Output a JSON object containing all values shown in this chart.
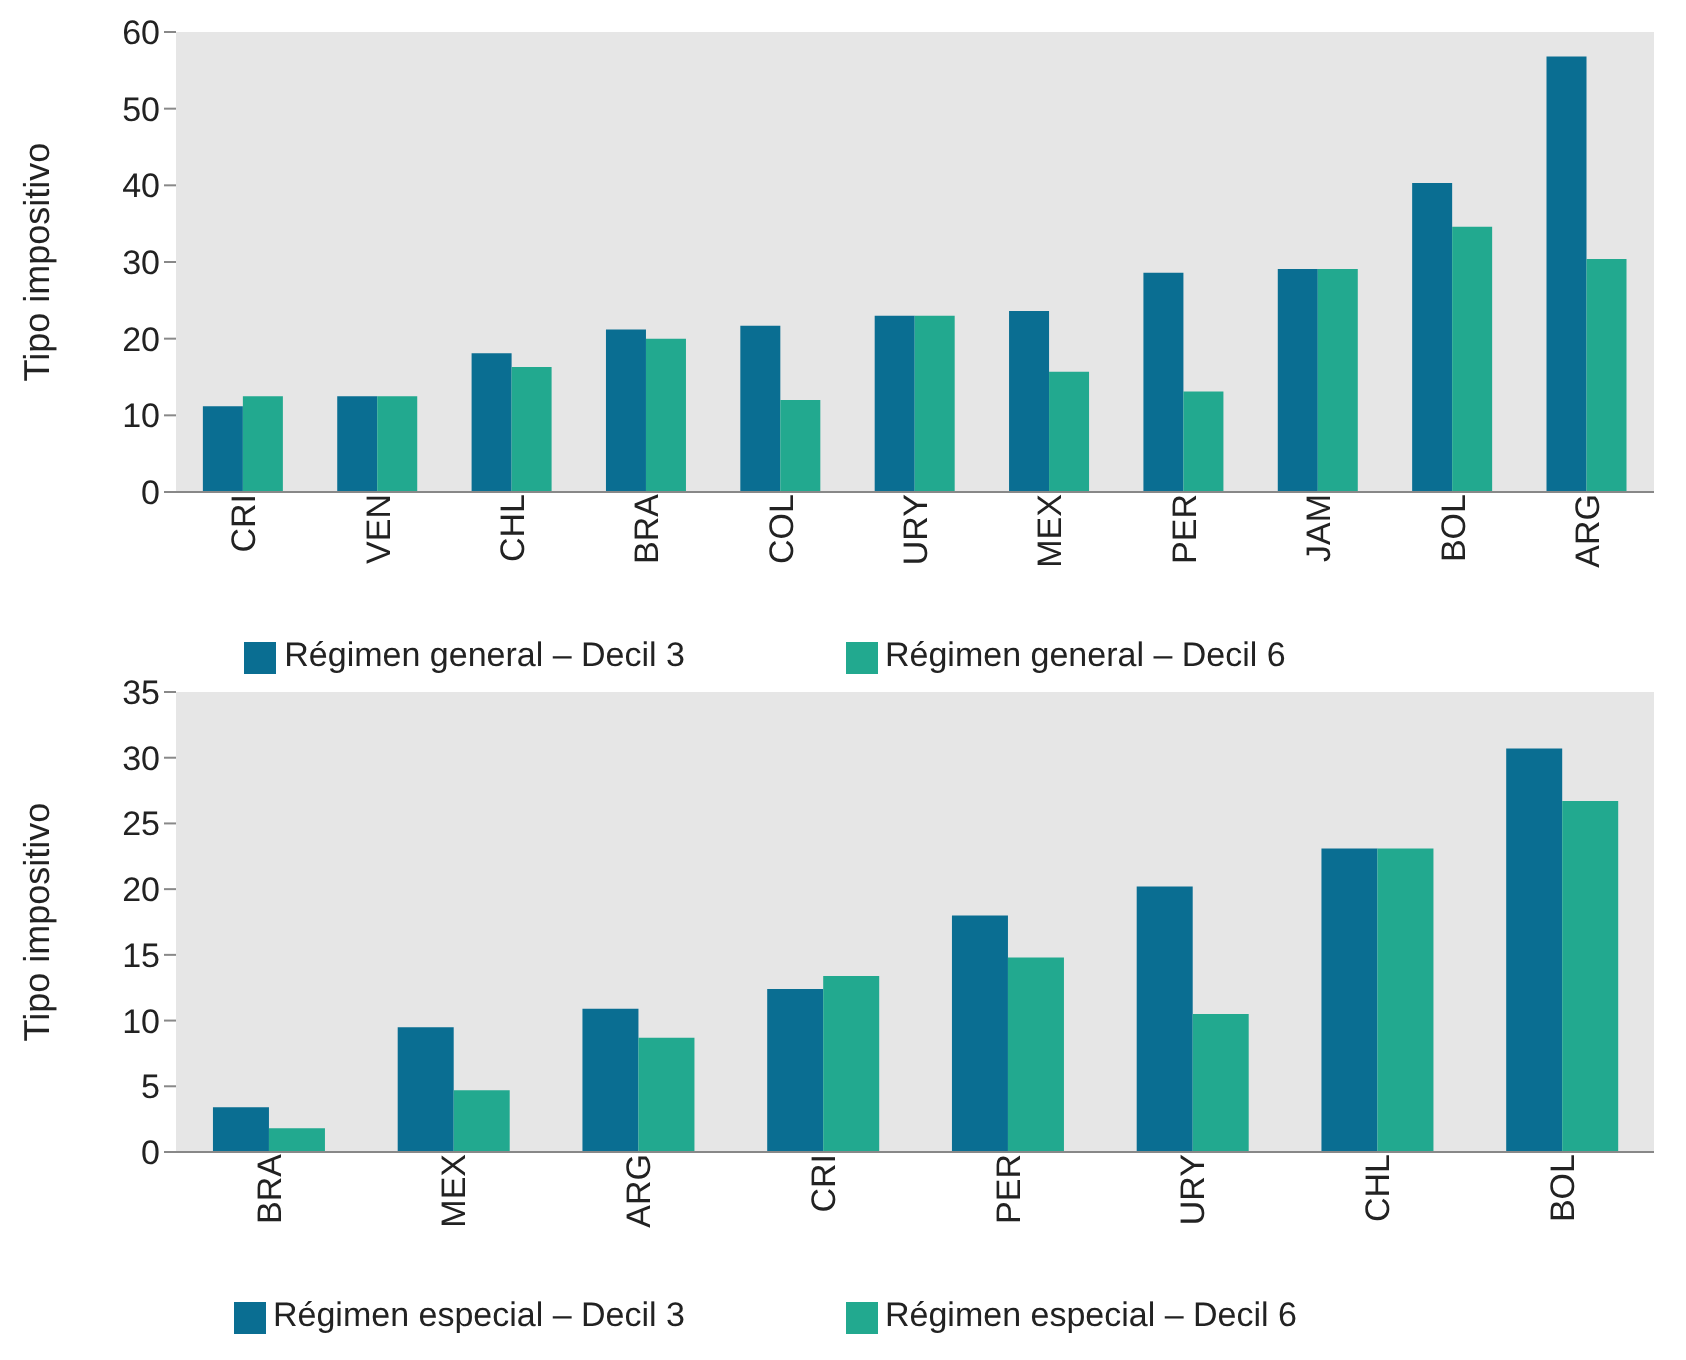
{
  "chart_data": [
    {
      "type": "bar",
      "ylabel": "Tipo impositivo",
      "categories": [
        "CRI",
        "VEN",
        "CHL",
        "BRA",
        "COL",
        "URY",
        "MEX",
        "PER",
        "JAM",
        "BOL",
        "ARG"
      ],
      "series": [
        {
          "name": "Régimen general – Decil 3",
          "color": "#0a6e92",
          "values": [
            11.2,
            12.5,
            18.1,
            21.2,
            21.7,
            23,
            23.6,
            28.6,
            29.1,
            40.3,
            56.8
          ]
        },
        {
          "name": "Régimen general – Decil 6",
          "color": "#22a98f",
          "values": [
            12.5,
            12.5,
            16.3,
            20,
            12,
            23,
            15.7,
            13.1,
            29.1,
            34.6,
            30.4
          ]
        }
      ],
      "ylim": [
        0,
        60
      ],
      "yticks": [
        0,
        10,
        20,
        30,
        40,
        50,
        60
      ],
      "legend": "bottom"
    },
    {
      "type": "bar",
      "ylabel": "Tipo impositivo",
      "categories": [
        "BRA",
        "MEX",
        "ARG",
        "CRI",
        "PER",
        "URY",
        "CHL",
        "BOL"
      ],
      "series": [
        {
          "name": "Régimen especial – Decil 3",
          "color": "#0a6e92",
          "values": [
            3.4,
            9.5,
            10.9,
            12.4,
            18,
            20.2,
            23.1,
            30.7
          ]
        },
        {
          "name": "Régimen especial – Decil 6",
          "color": "#22a98f",
          "values": [
            1.8,
            4.7,
            8.7,
            13.4,
            14.8,
            10.5,
            23.1,
            26.7
          ]
        }
      ],
      "ylim": [
        0,
        35
      ],
      "yticks": [
        0,
        5,
        10,
        15,
        20,
        25,
        30,
        35
      ],
      "legend": "bottom"
    }
  ]
}
